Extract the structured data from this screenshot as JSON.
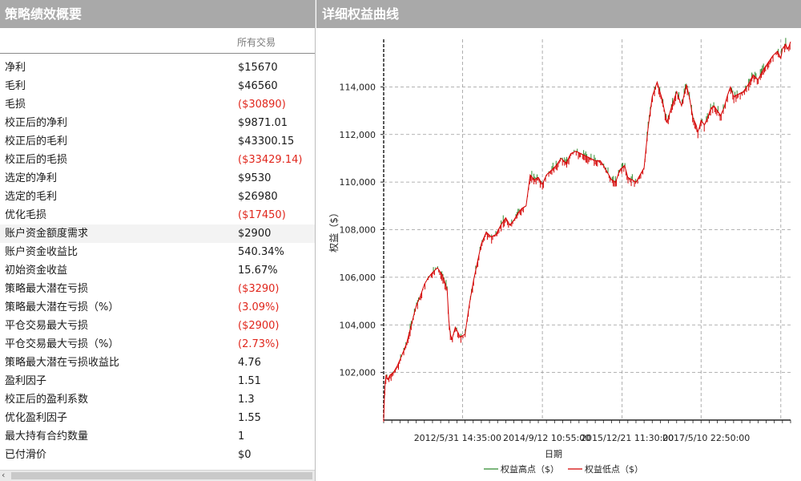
{
  "left_panel": {
    "title": "策略绩效概要",
    "column_header": "所有交易",
    "rows": [
      {
        "label": "净利",
        "value": "$15670",
        "negative": false
      },
      {
        "label": "毛利",
        "value": "$46560",
        "negative": false
      },
      {
        "label": "毛损",
        "value": "($30890)",
        "negative": true
      },
      {
        "label": "校正后的净利",
        "value": "$9871.01",
        "negative": false
      },
      {
        "label": "校正后的毛利",
        "value": "$43300.15",
        "negative": false
      },
      {
        "label": "校正后的毛损",
        "value": "($33429.14)",
        "negative": true
      },
      {
        "label": "选定的净利",
        "value": "$9530",
        "negative": false
      },
      {
        "label": "选定的毛利",
        "value": "$26980",
        "negative": false
      },
      {
        "label": "优化毛损",
        "value": "($17450)",
        "negative": true
      },
      {
        "label": "账户资金额度需求",
        "value": "$2900",
        "negative": false
      },
      {
        "label": "账户资金收益比",
        "value": "540.34%",
        "negative": false
      },
      {
        "label": "初始资金收益",
        "value": "15.67%",
        "negative": false
      },
      {
        "label": "策略最大潜在亏损",
        "value": "($3290)",
        "negative": true
      },
      {
        "label": "策略最大潜在亏损（%）",
        "value": "(3.09%)",
        "negative": true
      },
      {
        "label": "平仓交易最大亏损",
        "value": "($2900)",
        "negative": true
      },
      {
        "label": "平仓交易最大亏损（%）",
        "value": "(2.73%)",
        "negative": true
      },
      {
        "label": "策略最大潜在亏损收益比",
        "value": "4.76",
        "negative": false
      },
      {
        "label": "盈利因子",
        "value": "1.51",
        "negative": false
      },
      {
        "label": "校正后的盈利系数",
        "value": "1.3",
        "negative": false
      },
      {
        "label": "优化盈利因子",
        "value": "1.55",
        "negative": false
      },
      {
        "label": "最大持有合约数量",
        "value": "1",
        "negative": false
      },
      {
        "label": "已付滑价",
        "value": "$0",
        "negative": false
      }
    ],
    "scroll_left_icon": "chevron-left-icon"
  },
  "right_panel": {
    "title": "详细权益曲线"
  },
  "chart_data": {
    "type": "line",
    "title": "",
    "xlabel": "日期",
    "ylabel": "权益（$）",
    "ylim": [
      100000,
      116000
    ],
    "y_ticks": [
      "102,000",
      "104,000",
      "106,000",
      "108,000",
      "110,000",
      "112,000",
      "114,000"
    ],
    "x_ticks": [
      "2012/5/31 14:35:00",
      "2014/9/12 10:55:00",
      "2015/12/21 11:30:00",
      "2017/5/10 22:50:00"
    ],
    "grid": true,
    "legend_position": "bottom",
    "colors": {
      "high": "#2e8b2e",
      "low": "#d40000"
    },
    "series": [
      {
        "name": "权益高点（$）",
        "color": "#2e8b2e"
      },
      {
        "name": "权益低点（$）",
        "color": "#d40000"
      }
    ],
    "x_index": [
      0,
      1,
      2,
      3,
      5,
      8,
      12,
      17,
      22,
      28,
      34,
      40,
      45,
      50,
      55,
      60,
      66,
      72,
      78,
      80,
      82,
      84,
      88,
      94,
      100,
      105,
      110,
      115,
      120,
      126,
      132,
      138,
      144,
      150,
      155,
      160,
      165,
      170,
      175,
      180,
      185,
      190,
      195,
      200,
      206,
      212,
      218,
      224,
      230,
      236,
      242,
      248,
      254,
      260,
      266,
      270,
      275,
      280,
      285,
      290,
      296,
      300,
      305,
      310,
      315,
      320,
      325,
      330,
      336,
      342,
      348,
      354,
      360,
      366,
      372,
      376,
      380,
      384,
      386,
      388,
      390,
      394,
      398,
      402,
      406,
      410,
      414,
      418,
      422,
      426,
      430,
      436,
      442,
      448,
      454,
      460,
      466,
      472,
      478,
      484,
      488,
      490,
      492,
      494,
      496,
      498,
      500
    ],
    "values": [
      100100,
      101000,
      101600,
      101900,
      101700,
      101900,
      102000,
      102300,
      102700,
      103200,
      104000,
      104800,
      105200,
      105700,
      106000,
      106200,
      106400,
      106100,
      105500,
      104200,
      103600,
      103400,
      103900,
      103500,
      103600,
      104800,
      105800,
      106600,
      107400,
      107900,
      107700,
      107800,
      108200,
      108500,
      108200,
      108400,
      108700,
      108900,
      109000,
      110300,
      110100,
      110200,
      109900,
      110300,
      110500,
      110700,
      111000,
      110800,
      111200,
      111300,
      111200,
      111100,
      111000,
      110900,
      110900,
      110700,
      110400,
      110100,
      110000,
      110500,
      110700,
      110200,
      110100,
      110000,
      110300,
      110600,
      112300,
      113600,
      114200,
      113500,
      112500,
      113200,
      113800,
      113200,
      114100,
      113500,
      112700,
      112400,
      112100,
      112300,
      112600,
      112400,
      112700,
      113100,
      113200,
      113000,
      112800,
      113100,
      113600,
      114000,
      113600,
      113700,
      113800,
      114100,
      114500,
      114300,
      114700,
      115000,
      115300,
      115500,
      115200,
      115600,
      115700,
      115800,
      115600,
      115700,
      115900
    ]
  }
}
